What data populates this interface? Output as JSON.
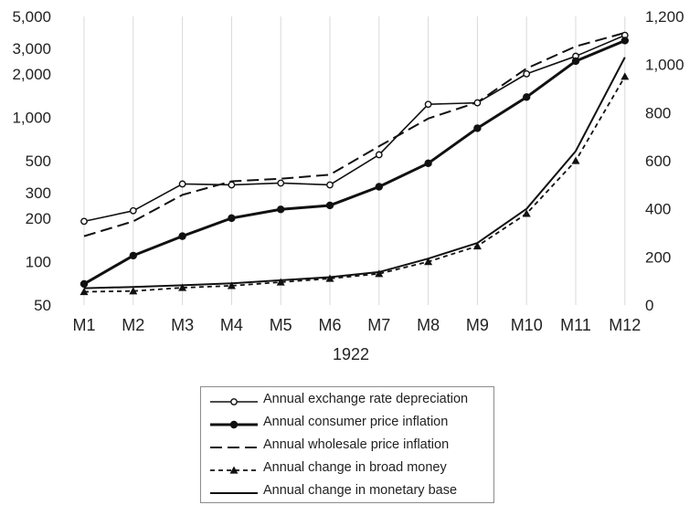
{
  "chart_data": {
    "type": "line",
    "title": "",
    "xlabel": "1922",
    "categories": [
      "M1",
      "M2",
      "M3",
      "M4",
      "M5",
      "M6",
      "M7",
      "M8",
      "M9",
      "M10",
      "M11",
      "M12"
    ],
    "y_left": {
      "scale": "log",
      "ylim": [
        50,
        5000
      ],
      "tick_values": [
        50,
        100,
        200,
        300,
        500,
        1000,
        2000,
        3000,
        5000
      ],
      "tick_labels": [
        "50",
        "100",
        "200",
        "300",
        "500",
        "1,000",
        "2,000",
        "3,000",
        "5,000"
      ]
    },
    "y_right": {
      "scale": "linear",
      "ylim": [
        0,
        1200
      ],
      "tick_values": [
        0,
        200,
        400,
        600,
        800,
        1000,
        1200
      ],
      "tick_labels": [
        "0",
        "200",
        "400",
        "600",
        "800",
        "1,000",
        "1,200"
      ]
    },
    "grid": true,
    "legend_position": "bottom",
    "series": [
      {
        "name": "Annual exchange rate depreciation",
        "axis": "left",
        "style": "solid-open-circle",
        "values": [
          190,
          225,
          345,
          340,
          350,
          340,
          550,
          1230,
          1260,
          2000,
          2650,
          3700
        ]
      },
      {
        "name": "Annual consumer price inflation",
        "axis": "left",
        "style": "bold-filled-circle",
        "values": [
          70,
          110,
          150,
          200,
          230,
          245,
          330,
          480,
          840,
          1380,
          2450,
          3400
        ]
      },
      {
        "name": "Annual wholesale price inflation",
        "axis": "left",
        "style": "long-dash",
        "values": [
          150,
          190,
          290,
          360,
          375,
          400,
          630,
          980,
          1270,
          2180,
          3100,
          3850
        ]
      },
      {
        "name": "Annual change in broad money",
        "axis": "right",
        "style": "short-dash-triangle",
        "values": [
          55,
          58,
          72,
          80,
          95,
          110,
          130,
          180,
          245,
          380,
          600,
          950
        ]
      },
      {
        "name": "Annual change in monetary base",
        "axis": "right",
        "style": "solid-thin",
        "values": [
          70,
          75,
          82,
          90,
          103,
          116,
          137,
          193,
          258,
          400,
          640,
          1030
        ]
      }
    ]
  }
}
